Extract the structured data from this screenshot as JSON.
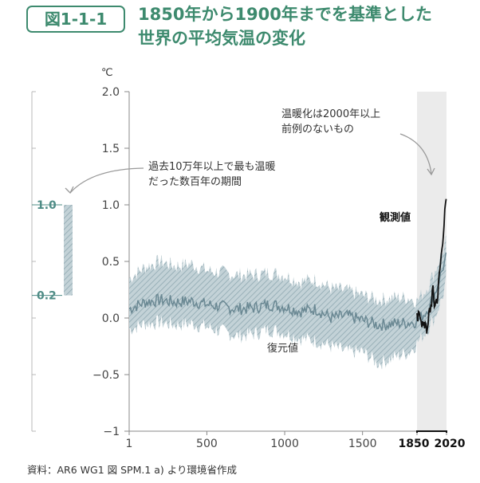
{
  "header": {
    "figure_label": "図1-1-1",
    "title_line1": "1850年から1900年までを基準とした",
    "title_line2": "世界の平均気温の変化"
  },
  "colors": {
    "brand": "#3d8a6e",
    "band": "#a9bcc3",
    "band_line": "#6a8893",
    "observed": "#111111",
    "highlight": "#ebebeb",
    "axis": "#888888"
  },
  "chart_data": {
    "type": "line",
    "title": "",
    "xlabel": "",
    "ylabel": "℃",
    "ylim": [
      -1,
      2
    ],
    "y_ticks": [
      "2.0",
      "1.5",
      "1.0",
      "0.5",
      "0.0",
      "−0.5",
      "−1"
    ],
    "x_ticks": [
      "1",
      "500",
      "1000",
      "1500",
      "1850",
      "2020"
    ],
    "x_ticks_bold": [
      "1850",
      "2020"
    ],
    "highlight_range": [
      1850,
      2020
    ],
    "series": [
      {
        "name": "復元値",
        "type": "area-band-with-line",
        "x": [
          1,
          100,
          200,
          300,
          400,
          500,
          600,
          700,
          800,
          900,
          1000,
          1100,
          1200,
          1300,
          1400,
          1500,
          1600,
          1700,
          1800,
          1850,
          1900,
          1950,
          2000,
          2020
        ],
        "values": [
          0.08,
          0.14,
          0.16,
          0.14,
          0.15,
          0.12,
          0.1,
          0.08,
          0.09,
          0.12,
          0.1,
          0.06,
          0.08,
          0.0,
          0.02,
          -0.02,
          -0.06,
          -0.05,
          -0.04,
          -0.03,
          0.05,
          0.2,
          0.45,
          0.55
        ],
        "lower": [
          -0.1,
          -0.05,
          -0.04,
          -0.06,
          -0.05,
          -0.08,
          -0.12,
          -0.16,
          -0.14,
          -0.1,
          -0.13,
          -0.18,
          -0.2,
          -0.25,
          -0.3,
          -0.3,
          -0.4,
          -0.35,
          -0.3,
          -0.22,
          -0.12,
          0.0,
          0.2,
          0.35
        ],
        "upper": [
          0.35,
          0.45,
          0.5,
          0.46,
          0.48,
          0.42,
          0.4,
          0.38,
          0.38,
          0.4,
          0.38,
          0.32,
          0.34,
          0.26,
          0.24,
          0.2,
          0.16,
          0.18,
          0.18,
          0.15,
          0.25,
          0.4,
          0.6,
          0.7
        ]
      },
      {
        "name": "観測値",
        "type": "line",
        "x": [
          1850,
          1860,
          1870,
          1880,
          1890,
          1900,
          1910,
          1920,
          1930,
          1940,
          1950,
          1960,
          1970,
          1980,
          1990,
          2000,
          2010,
          2020
        ],
        "values": [
          -0.02,
          0.0,
          0.05,
          -0.05,
          -0.1,
          0.0,
          -0.15,
          0.05,
          0.1,
          0.25,
          0.12,
          0.15,
          0.2,
          0.4,
          0.55,
          0.75,
          0.9,
          1.09
        ]
      }
    ],
    "range_bar": {
      "label": "過去10万年以上で最も温暖だった数百年の期間",
      "low": 0.2,
      "high": 1.0,
      "low_label": "0.2",
      "high_label": "1.0"
    },
    "annotations": {
      "past_line1": "過去10万年以上で最も温暖",
      "past_line2": "だった数百年の期間",
      "recent_line1": "温暖化は2000年以上",
      "recent_line2": "前例のないもの",
      "observed_label": "観測値",
      "reconstructed_label": "復元値"
    }
  },
  "footer": {
    "source": "資料：AR6 WG1 図 SPM.1 a) より環境省作成"
  }
}
